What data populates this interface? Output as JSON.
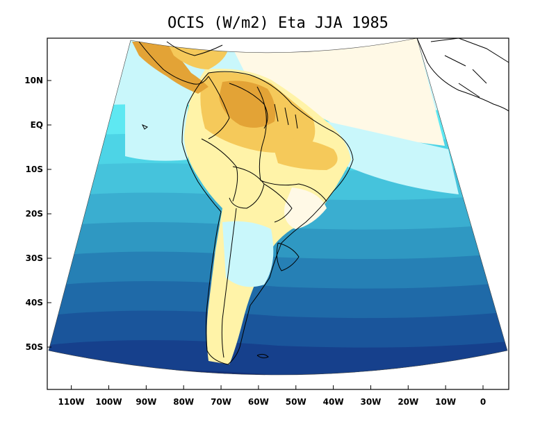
{
  "title": "OCIS (W/m2) Eta JJA 1985",
  "y_ticks": [
    {
      "label": "10N",
      "lat": 10
    },
    {
      "label": "EQ",
      "lat": 0
    },
    {
      "label": "10S",
      "lat": -10
    },
    {
      "label": "20S",
      "lat": -20
    },
    {
      "label": "30S",
      "lat": -30
    },
    {
      "label": "40S",
      "lat": -40
    },
    {
      "label": "50S",
      "lat": -50
    }
  ],
  "x_ticks": [
    {
      "label": "110W",
      "lon": -110
    },
    {
      "label": "100W",
      "lon": -100
    },
    {
      "label": "90W",
      "lon": -90
    },
    {
      "label": "80W",
      "lon": -80
    },
    {
      "label": "70W",
      "lon": -70
    },
    {
      "label": "60W",
      "lon": -60
    },
    {
      "label": "50W",
      "lon": -50
    },
    {
      "label": "40W",
      "lon": -40
    },
    {
      "label": "30W",
      "lon": -30
    },
    {
      "label": "20W",
      "lon": -20
    },
    {
      "label": "10W",
      "lon": -10
    },
    {
      "label": "0",
      "lon": 0
    }
  ],
  "palette": {
    "ocean_bands": [
      "#5ee8f2",
      "#4dd4e6",
      "#45c3dc",
      "#3aaed0",
      "#2f98c2",
      "#2680b5",
      "#1f6aa8",
      "#1a559b",
      "#16408c",
      "#12307a"
    ],
    "land_yellow": "#fff3a8",
    "land_orange": "#f5c95a",
    "land_dark": "#e3a336",
    "land_pale": "#fff9e6",
    "light_cyan": "#c9f7fb"
  }
}
